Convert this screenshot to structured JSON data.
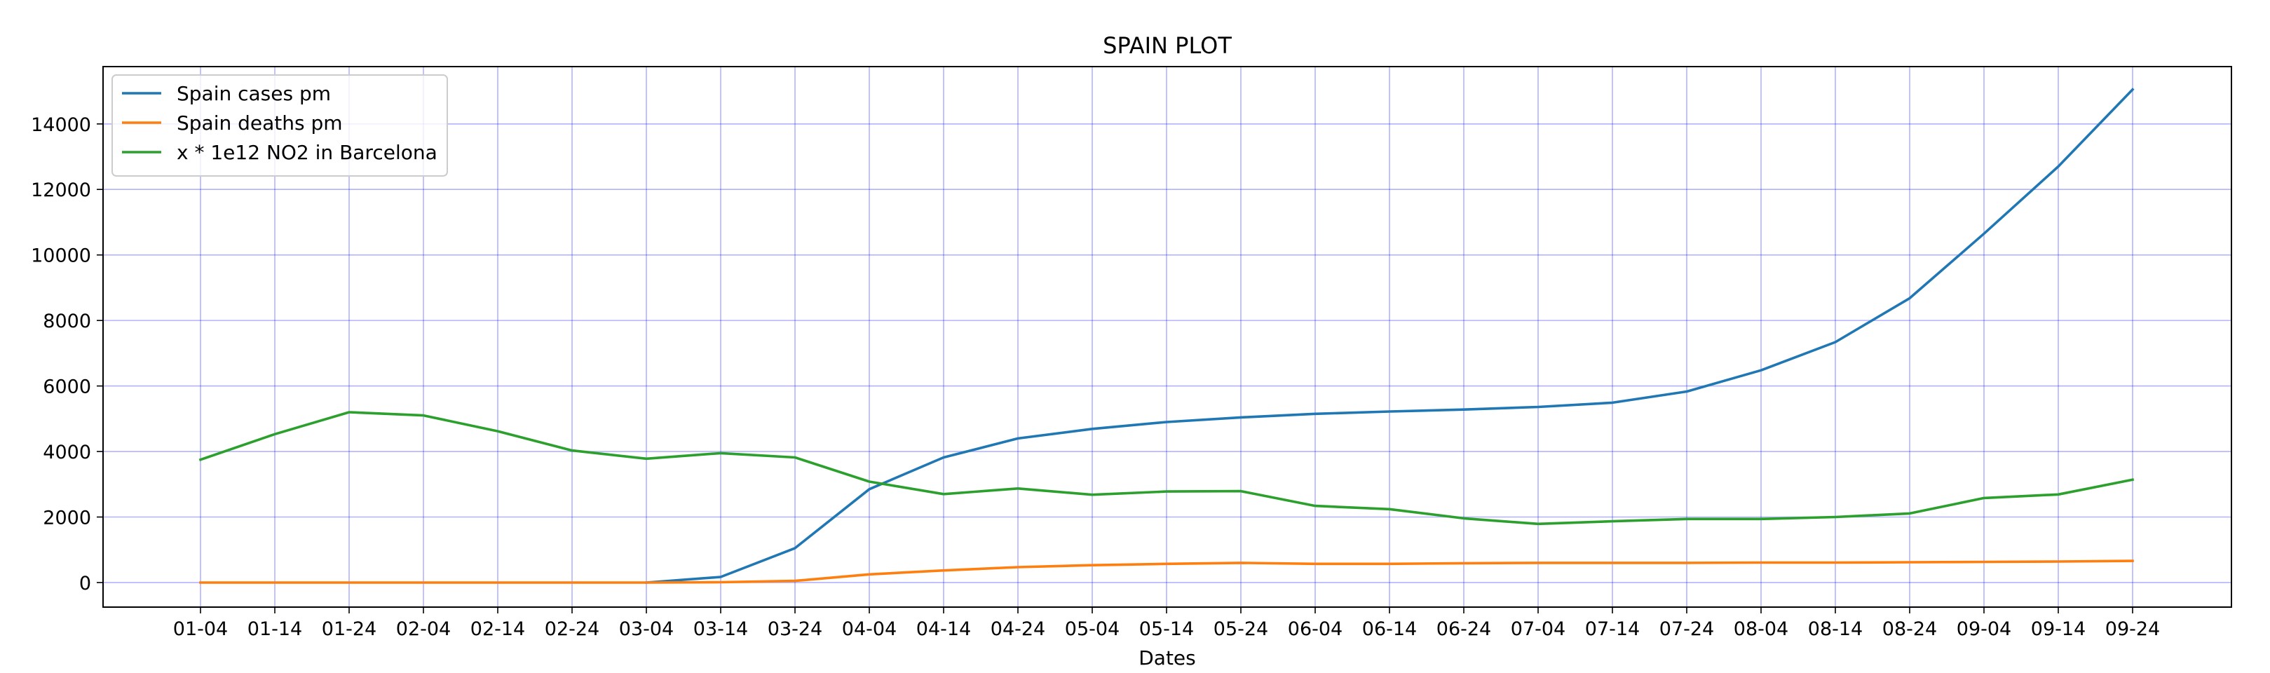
{
  "chart_data": {
    "type": "line",
    "title": "SPAIN PLOT",
    "xlabel": "Dates",
    "ylabel": "",
    "categories": [
      "01-04",
      "01-14",
      "01-24",
      "02-04",
      "02-14",
      "02-24",
      "03-04",
      "03-14",
      "03-24",
      "04-04",
      "04-14",
      "04-24",
      "05-04",
      "05-14",
      "05-24",
      "06-04",
      "06-14",
      "06-24",
      "07-04",
      "07-14",
      "07-24",
      "08-04",
      "08-14",
      "08-24",
      "09-04",
      "09-14",
      "09-24"
    ],
    "yticks": [
      0,
      2000,
      4000,
      6000,
      8000,
      10000,
      12000,
      14000
    ],
    "ylim": [
      -750,
      15750
    ],
    "grid": true,
    "grid_color": "#0000ff",
    "legend_position": "upper-left",
    "series": [
      {
        "name": "Spain cases pm",
        "color": "#1f77b4",
        "values": [
          null,
          null,
          null,
          null,
          null,
          null,
          0,
          170,
          1050,
          2850,
          3820,
          4400,
          4690,
          4900,
          5040,
          5150,
          5220,
          5280,
          5360,
          5490,
          5830,
          6480,
          7340,
          8680,
          10650,
          12700,
          15050
        ]
      },
      {
        "name": "Spain deaths pm",
        "color": "#ff7f0e",
        "values": [
          0,
          0,
          0,
          0,
          0,
          0,
          0,
          10,
          50,
          250,
          370,
          470,
          530,
          570,
          600,
          570,
          570,
          590,
          600,
          600,
          600,
          610,
          610,
          620,
          630,
          640,
          660
        ]
      },
      {
        "name": "x * 1e12 NO2 in Barcelona",
        "color": "#2ca02c",
        "values": [
          3750,
          4530,
          5200,
          5100,
          4620,
          4030,
          3780,
          3950,
          3820,
          3080,
          2700,
          2870,
          2680,
          2780,
          2790,
          2340,
          2240,
          1960,
          1790,
          1870,
          1940,
          1940,
          2000,
          2110,
          2580,
          2690,
          3140
        ]
      }
    ]
  }
}
